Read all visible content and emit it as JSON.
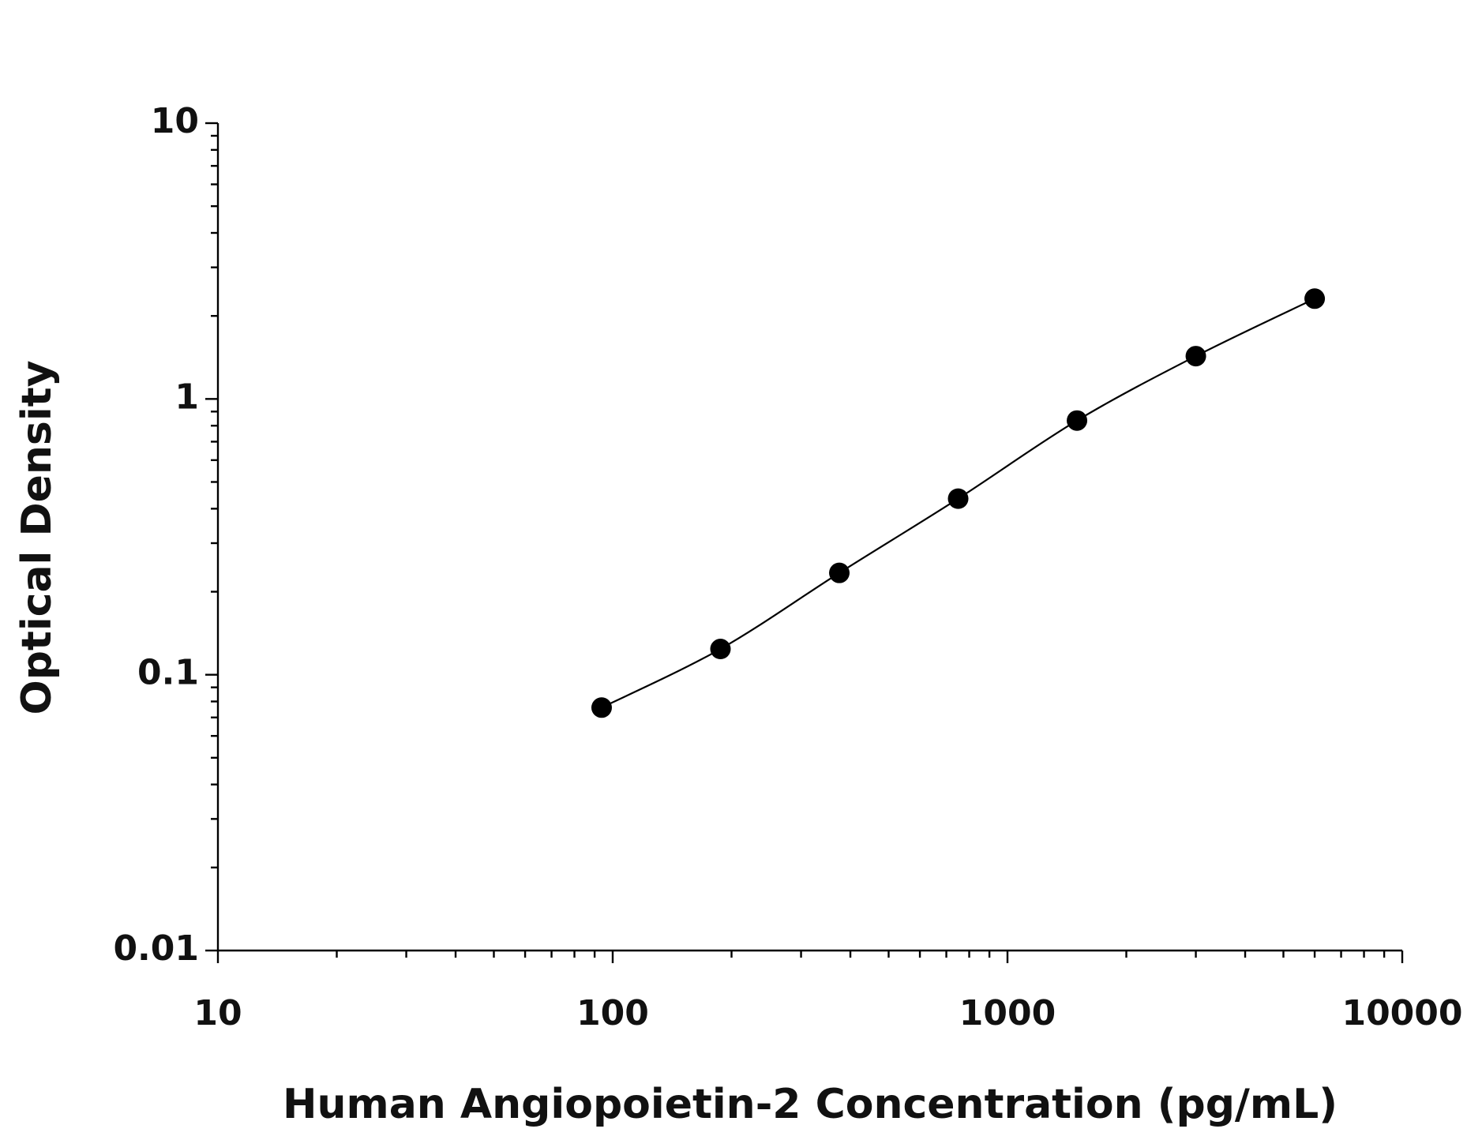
{
  "chart_data": {
    "type": "scatter",
    "x_label": "Human Angiopoietin-2 Concentration (pg/mL)",
    "y_label": "Optical Density",
    "x": [
      93.75,
      187.5,
      375,
      750,
      1500,
      3000,
      6000
    ],
    "series": [
      {
        "color": "#000000",
        "values": [
          0.076,
          0.124,
          0.234,
          0.435,
          0.835,
          1.43,
          2.31
        ]
      }
    ],
    "xlim": [
      10,
      10000
    ],
    "ylim": [
      0.01,
      10
    ],
    "xticks": [
      10,
      100,
      1000,
      10000
    ],
    "yticks": [
      0.01,
      0.1,
      1,
      10
    ],
    "xscale": "log",
    "yscale": "log",
    "grid": false,
    "fit_line": true
  }
}
